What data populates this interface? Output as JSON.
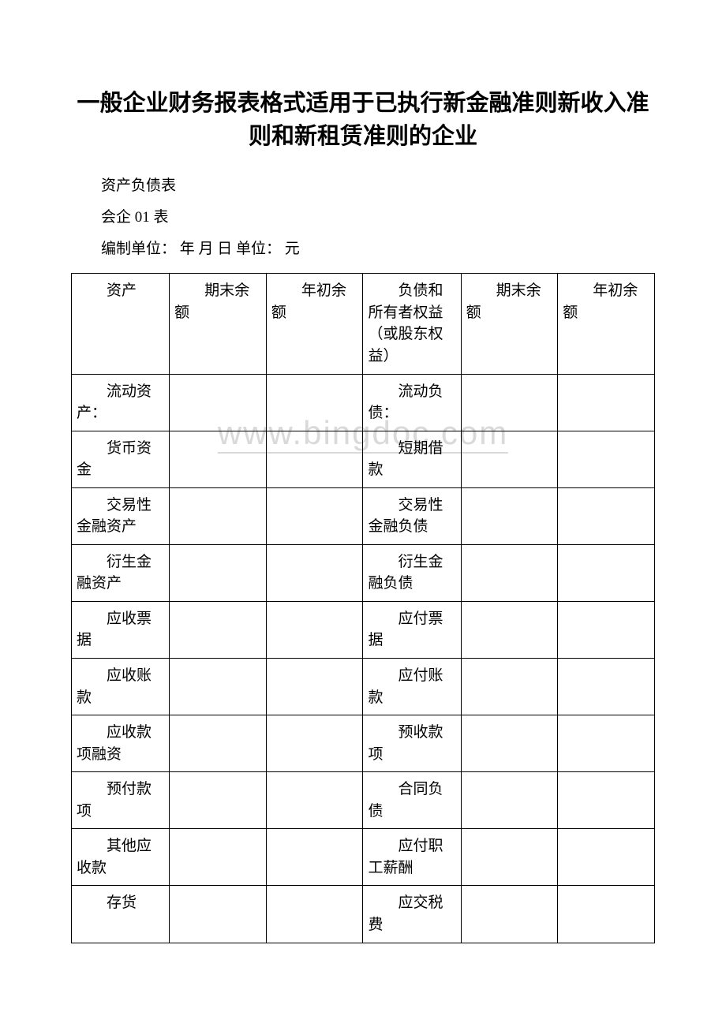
{
  "watermark": "www.bingdoc.com",
  "title": "一般企业财务报表格式适用于已执行新金融准则新收入准则和新租赁准则的企业",
  "meta": {
    "line1": "资产负债表",
    "line2": "会企 01 表",
    "line3": "编制单位：  年 月 日 单位：  元"
  },
  "table": {
    "border_color": "#000000",
    "background_color": "#ffffff",
    "font_size_pt": 14,
    "columns": [
      {
        "key": "assets",
        "label": "资产",
        "width_pct": 16.8
      },
      {
        "key": "end_balance_a",
        "label": "期末余额",
        "width_pct": 16.6
      },
      {
        "key": "start_balance_a",
        "label": "年初余额",
        "width_pct": 16.6
      },
      {
        "key": "liab_equity",
        "label": "负债和所有者权益（或股东权益）",
        "width_pct": 16.8
      },
      {
        "key": "end_balance_l",
        "label": "期末余额",
        "width_pct": 16.6
      },
      {
        "key": "start_balance_l",
        "label": "年初余额",
        "width_pct": 16.6
      }
    ],
    "rows": [
      {
        "assets": "流动资产：",
        "end_balance_a": "",
        "start_balance_a": "",
        "liab_equity": "流动负债：",
        "end_balance_l": "",
        "start_balance_l": ""
      },
      {
        "assets": "货币资金",
        "end_balance_a": "",
        "start_balance_a": "",
        "liab_equity": "短期借款",
        "end_balance_l": "",
        "start_balance_l": ""
      },
      {
        "assets": "交易性金融资产",
        "end_balance_a": "",
        "start_balance_a": "",
        "liab_equity": "交易性金融负债",
        "end_balance_l": "",
        "start_balance_l": ""
      },
      {
        "assets": "衍生金融资产",
        "end_balance_a": "",
        "start_balance_a": "",
        "liab_equity": "衍生金融负债",
        "end_balance_l": "",
        "start_balance_l": ""
      },
      {
        "assets": "应收票据",
        "end_balance_a": "",
        "start_balance_a": "",
        "liab_equity": "应付票据",
        "end_balance_l": "",
        "start_balance_l": ""
      },
      {
        "assets": "应收账款",
        "end_balance_a": "",
        "start_balance_a": "",
        "liab_equity": "应付账款",
        "end_balance_l": "",
        "start_balance_l": ""
      },
      {
        "assets": "应收款项融资",
        "end_balance_a": "",
        "start_balance_a": "",
        "liab_equity": "预收款项",
        "end_balance_l": "",
        "start_balance_l": ""
      },
      {
        "assets": "预付款项",
        "end_balance_a": "",
        "start_balance_a": "",
        "liab_equity": "合同负债",
        "end_balance_l": "",
        "start_balance_l": ""
      },
      {
        "assets": "其他应收款",
        "end_balance_a": "",
        "start_balance_a": "",
        "liab_equity": "应付职工薪酬",
        "end_balance_l": "",
        "start_balance_l": ""
      },
      {
        "assets": "存货",
        "end_balance_a": "",
        "start_balance_a": "",
        "liab_equity": "应交税费",
        "end_balance_l": "",
        "start_balance_l": ""
      }
    ]
  },
  "typography": {
    "title_fontsize_pt": 22,
    "body_fontsize_pt": 14,
    "font_family": "SimSun",
    "title_font_family": "SimHei",
    "text_color": "#000000",
    "watermark_color": "#d9d9d9",
    "page_background": "#ffffff"
  }
}
